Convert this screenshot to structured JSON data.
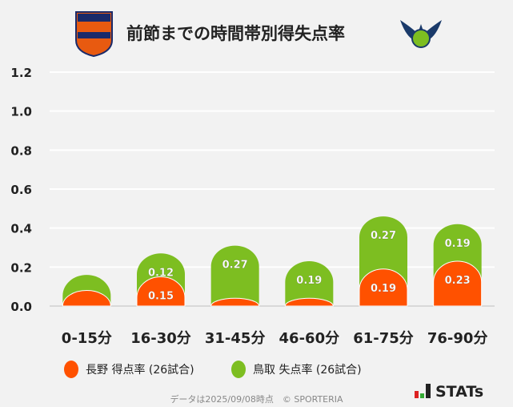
{
  "title": "前節までの時間帯別得失点率",
  "logos": {
    "left": "AC NAGANO PARCEIRO",
    "right": "鳥取 crest"
  },
  "chart_data": {
    "type": "bar",
    "stacked": true,
    "categories": [
      "0-15分",
      "16-30分",
      "31-45分",
      "46-60分",
      "61-75分",
      "76-90分"
    ],
    "series": [
      {
        "name": "長野 得点率 (26試合)",
        "color": "#ff5100",
        "values": [
          0.08,
          0.15,
          0.04,
          0.04,
          0.19,
          0.23
        ],
        "labels": [
          "",
          "0.15",
          "",
          "",
          "0.19",
          "0.23"
        ]
      },
      {
        "name": "鳥取 失点率 (26試合)",
        "color": "#7dbe21",
        "values": [
          0.08,
          0.12,
          0.27,
          0.19,
          0.27,
          0.19
        ],
        "labels": [
          "",
          "0.12",
          "0.27",
          "0.19",
          "0.27",
          "0.19"
        ]
      }
    ],
    "yticks": [
      "0.0",
      "0.2",
      "0.4",
      "0.6",
      "0.8",
      "1.0",
      "1.2"
    ],
    "ylim": [
      0,
      1.2
    ],
    "grid": true,
    "legend": "bottom"
  },
  "footer": "データは2025/09/08時点　© SPORTERIA",
  "brand": "STATs"
}
